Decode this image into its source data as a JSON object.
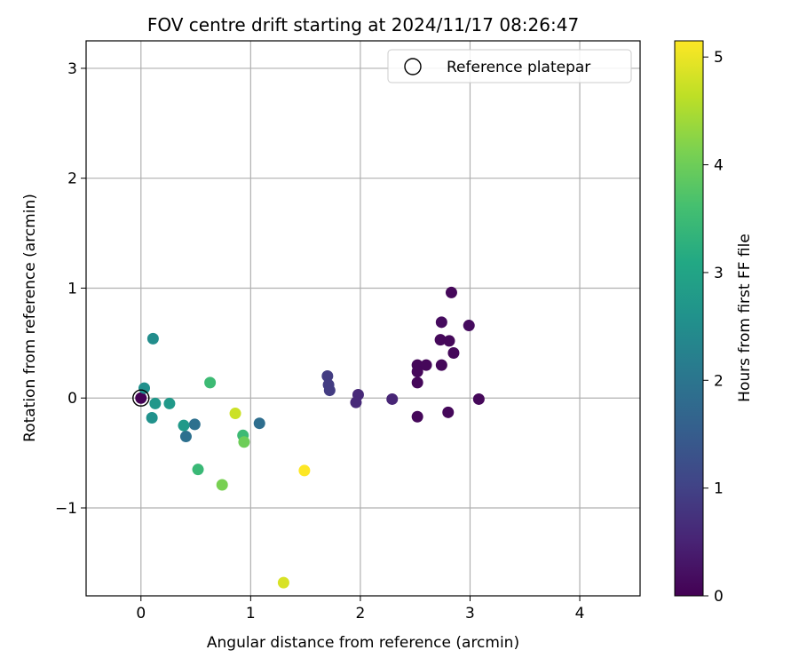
{
  "chart_data": {
    "type": "scatter",
    "title": "FOV centre drift starting at 2024/11/17 08:26:47",
    "xlabel": "Angular distance from reference (arcmin)",
    "ylabel": "Rotation from reference (arcmin)",
    "xlim": [
      -0.5,
      4.55
    ],
    "ylim": [
      -1.8,
      3.25
    ],
    "xticks": [
      0,
      1,
      2,
      3,
      4
    ],
    "yticks": [
      -1,
      0,
      1,
      2,
      3
    ],
    "grid": true,
    "legend": {
      "placement": "top-right",
      "entries": [
        "Reference platepar"
      ]
    },
    "colorbar": {
      "label": "Hours from first FF file",
      "range": [
        0,
        5.15
      ],
      "ticks": [
        0,
        1,
        2,
        3,
        4,
        5
      ],
      "colormap": "viridis"
    },
    "reference": {
      "x": 0,
      "y": 0,
      "name": "Reference platepar"
    },
    "points": [
      {
        "x": 0.0,
        "y": 0.0,
        "hours": 0.0
      },
      {
        "x": 2.83,
        "y": 0.96,
        "hours": 0.1
      },
      {
        "x": 2.74,
        "y": 0.69,
        "hours": 0.15
      },
      {
        "x": 2.99,
        "y": 0.66,
        "hours": 0.15
      },
      {
        "x": 2.73,
        "y": 0.53,
        "hours": 0.1
      },
      {
        "x": 2.81,
        "y": 0.52,
        "hours": 0.1
      },
      {
        "x": 2.85,
        "y": 0.41,
        "hours": 0.1
      },
      {
        "x": 2.52,
        "y": 0.3,
        "hours": 0.1
      },
      {
        "x": 2.6,
        "y": 0.3,
        "hours": 0.1
      },
      {
        "x": 2.74,
        "y": 0.3,
        "hours": 0.1
      },
      {
        "x": 2.52,
        "y": 0.24,
        "hours": 0.1
      },
      {
        "x": 2.52,
        "y": 0.14,
        "hours": 0.1
      },
      {
        "x": 3.08,
        "y": -0.01,
        "hours": 0.1
      },
      {
        "x": 2.8,
        "y": -0.13,
        "hours": 0.1
      },
      {
        "x": 2.52,
        "y": -0.17,
        "hours": 0.1
      },
      {
        "x": 2.29,
        "y": -0.01,
        "hours": 0.55
      },
      {
        "x": 1.98,
        "y": 0.03,
        "hours": 0.6
      },
      {
        "x": 1.96,
        "y": -0.04,
        "hours": 0.6
      },
      {
        "x": 1.7,
        "y": 0.2,
        "hours": 0.9
      },
      {
        "x": 1.71,
        "y": 0.12,
        "hours": 0.9
      },
      {
        "x": 1.72,
        "y": 0.07,
        "hours": 0.9
      },
      {
        "x": 1.08,
        "y": -0.23,
        "hours": 1.85
      },
      {
        "x": 0.49,
        "y": -0.24,
        "hours": 1.9
      },
      {
        "x": 0.41,
        "y": -0.35,
        "hours": 1.9
      },
      {
        "x": 0.11,
        "y": 0.54,
        "hours": 2.5
      },
      {
        "x": 0.03,
        "y": 0.09,
        "hours": 2.55
      },
      {
        "x": 0.1,
        "y": -0.18,
        "hours": 2.6
      },
      {
        "x": 0.13,
        "y": -0.05,
        "hours": 2.7
      },
      {
        "x": 0.26,
        "y": -0.05,
        "hours": 2.75
      },
      {
        "x": 0.39,
        "y": -0.25,
        "hours": 2.75
      },
      {
        "x": 0.63,
        "y": 0.14,
        "hours": 3.5
      },
      {
        "x": 0.52,
        "y": -0.65,
        "hours": 3.45
      },
      {
        "x": 0.93,
        "y": -0.34,
        "hours": 3.5
      },
      {
        "x": 0.94,
        "y": -0.4,
        "hours": 4.0
      },
      {
        "x": 0.74,
        "y": -0.79,
        "hours": 4.1
      },
      {
        "x": 0.86,
        "y": -0.14,
        "hours": 4.75
      },
      {
        "x": 1.3,
        "y": -1.68,
        "hours": 4.85
      },
      {
        "x": 1.49,
        "y": -0.66,
        "hours": 5.15
      }
    ]
  }
}
